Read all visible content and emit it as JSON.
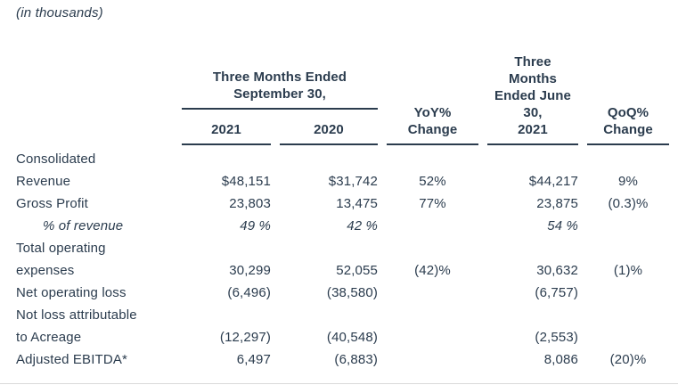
{
  "note": "(in thousands)",
  "colors": {
    "text": "#2b3c4e",
    "rule": "#2b3c4e",
    "bottom_rule": "#d9d9d9",
    "background": "#ffffff"
  },
  "table": {
    "headers": {
      "sep_group": "Three Months Ended\nSeptember 30,",
      "sep_2021": "2021",
      "sep_2020": "2020",
      "yoy": "YoY%\nChange",
      "june": "Three\nMonths\nEnded June\n30,\n2021",
      "qoq": "QoQ%\nChange"
    },
    "columns": [
      "label",
      "sep_2021",
      "sep_2020",
      "yoy_change",
      "june_2021",
      "qoq_change"
    ],
    "rows": [
      {
        "label": "Consolidated Revenue",
        "sep_2021": "$48,151",
        "sep_2020": "$31,742",
        "yoy_change": "52%",
        "june_2021": "$44,217",
        "qoq_change": "9%",
        "indent": false,
        "italic": false
      },
      {
        "label": "Gross Profit",
        "sep_2021": "23,803",
        "sep_2020": "13,475",
        "yoy_change": "77%",
        "june_2021": "23,875",
        "qoq_change": "(0.3)%",
        "indent": false,
        "italic": false
      },
      {
        "label": "% of revenue",
        "sep_2021": "49 %",
        "sep_2020": "42 %",
        "yoy_change": "",
        "june_2021": "54 %",
        "qoq_change": "",
        "indent": true,
        "italic": true
      },
      {
        "label": "Total operating expenses",
        "sep_2021": "30,299",
        "sep_2020": "52,055",
        "yoy_change": "(42)%",
        "june_2021": "30,632",
        "qoq_change": "(1)%",
        "indent": false,
        "italic": false
      },
      {
        "label": "Net operating loss",
        "sep_2021": "(6,496)",
        "sep_2020": "(38,580)",
        "yoy_change": "",
        "june_2021": "(6,757)",
        "qoq_change": "",
        "indent": false,
        "italic": false
      },
      {
        "label": "Not loss attributable to Acreage",
        "sep_2021": "(12,297)",
        "sep_2020": "(40,548)",
        "yoy_change": "",
        "june_2021": "(2,553)",
        "qoq_change": "",
        "indent": false,
        "italic": false
      },
      {
        "label": "Adjusted EBITDA*",
        "sep_2021": "6,497",
        "sep_2020": "(6,883)",
        "yoy_change": "",
        "june_2021": "8,086",
        "qoq_change": "(20)%",
        "indent": false,
        "italic": false
      }
    ]
  }
}
